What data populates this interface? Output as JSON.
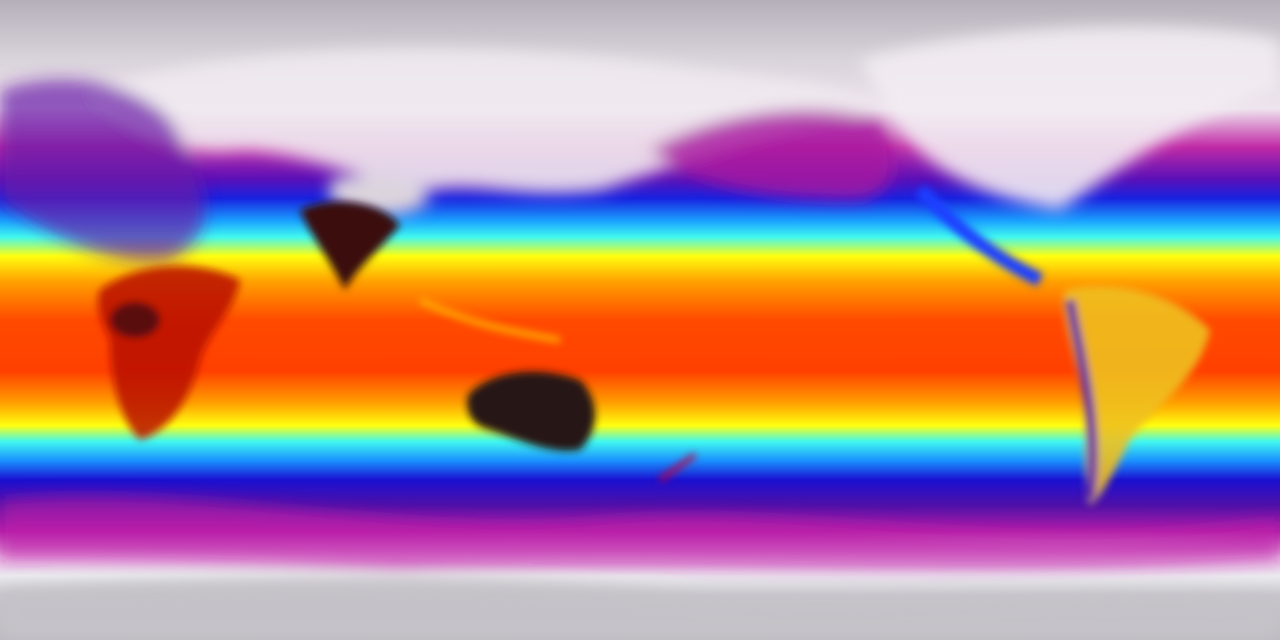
{
  "map": {
    "projection": "equirectangular",
    "view": "global",
    "colormap": [
      "#b9b5be",
      "#f4eef4",
      "#c21aa8",
      "#2a10c8",
      "#1060ff",
      "#30f0ff",
      "#fff200",
      "#ff9a00",
      "#ff3000",
      "#c80000",
      "#2a1a1a"
    ]
  }
}
